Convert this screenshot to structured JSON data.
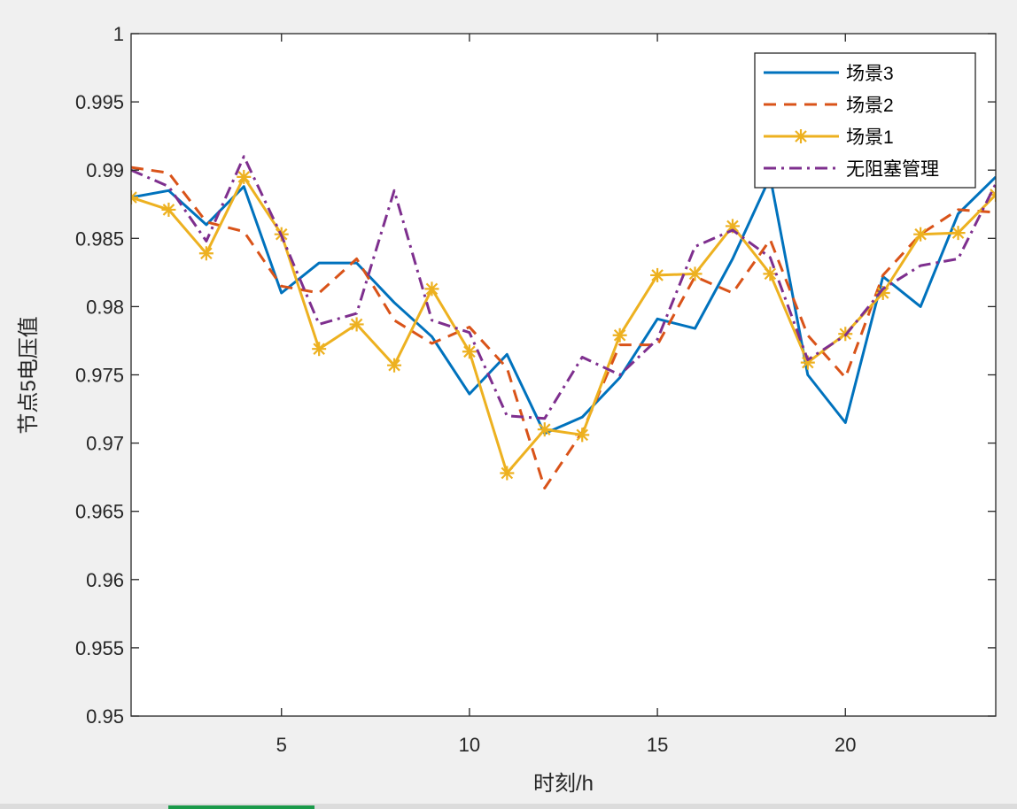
{
  "chart_data": {
    "type": "line",
    "xlabel": "时刻/h",
    "ylabel": "节点5电压值",
    "xlim": [
      1,
      24
    ],
    "ylim": [
      0.95,
      1
    ],
    "xticks": [
      5,
      10,
      15,
      20
    ],
    "yticks": [
      0.95,
      0.955,
      0.96,
      0.965,
      0.97,
      0.975,
      0.98,
      0.985,
      0.99,
      0.995,
      1
    ],
    "ytick_labels": [
      "0.95",
      "0.955",
      "0.96",
      "0.965",
      "0.97",
      "0.975",
      "0.98",
      "0.985",
      "0.99",
      "0.995",
      "1"
    ],
    "legend_position": "top-right",
    "grid": false,
    "x": [
      1,
      2,
      3,
      4,
      5,
      6,
      7,
      8,
      9,
      10,
      11,
      12,
      13,
      14,
      15,
      16,
      17,
      18,
      19,
      20,
      21,
      22,
      23,
      24
    ],
    "series": [
      {
        "name": "场景3",
        "color": "#0072BD",
        "style": "solid",
        "marker": "none",
        "values": [
          0.988,
          0.9885,
          0.986,
          0.9888,
          0.981,
          0.9832,
          0.9832,
          0.9803,
          0.9778,
          0.9736,
          0.9765,
          0.9707,
          0.9719,
          0.9748,
          0.9791,
          0.9784,
          0.9835,
          0.9895,
          0.975,
          0.9715,
          0.9822,
          0.98,
          0.9868,
          0.9895
        ]
      },
      {
        "name": "场景2",
        "color": "#D95319",
        "style": "dashed",
        "marker": "none",
        "values": [
          0.9902,
          0.9898,
          0.9862,
          0.9855,
          0.9815,
          0.981,
          0.9835,
          0.979,
          0.9773,
          0.9785,
          0.9755,
          0.9667,
          0.9708,
          0.9772,
          0.9772,
          0.9822,
          0.981,
          0.9849,
          0.9779,
          0.9748,
          0.9823,
          0.9853,
          0.9871,
          0.9869
        ]
      },
      {
        "name": "场景1",
        "color": "#EDB120",
        "style": "solid",
        "marker": "asterisk",
        "values": [
          0.988,
          0.9871,
          0.9839,
          0.9895,
          0.9853,
          0.9769,
          0.9787,
          0.9757,
          0.9813,
          0.9767,
          0.9678,
          0.971,
          0.9706,
          0.9779,
          0.9823,
          0.9824,
          0.9859,
          0.9824,
          0.9759,
          0.978,
          0.981,
          0.9853,
          0.9854,
          0.9882
        ]
      },
      {
        "name": "无阻塞管理",
        "color": "#7E2F8E",
        "style": "dashdot",
        "marker": "none",
        "values": [
          0.99,
          0.9888,
          0.9848,
          0.991,
          0.9852,
          0.9787,
          0.9795,
          0.9885,
          0.979,
          0.9781,
          0.972,
          0.9718,
          0.9763,
          0.975,
          0.9776,
          0.9844,
          0.9856,
          0.9836,
          0.9761,
          0.9779,
          0.9813,
          0.983,
          0.9835,
          0.989
        ]
      }
    ]
  }
}
